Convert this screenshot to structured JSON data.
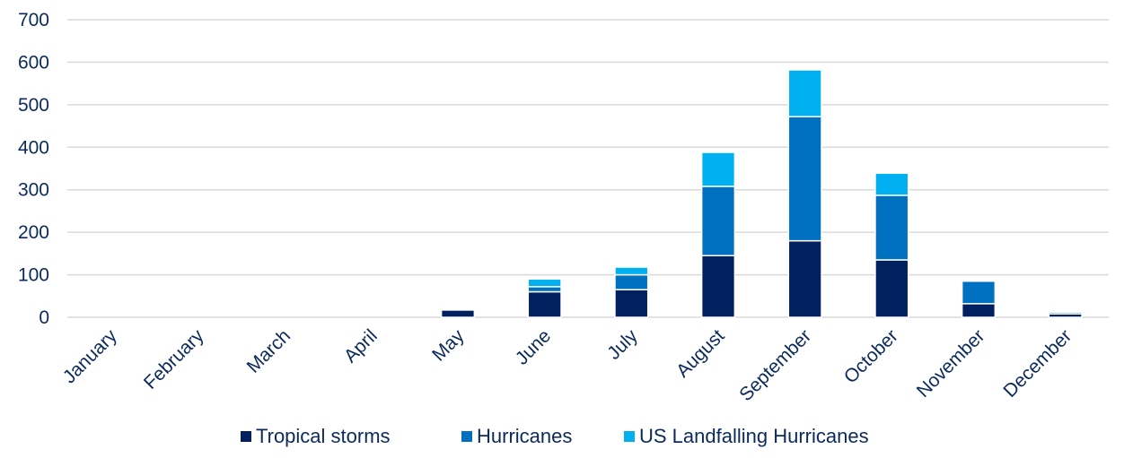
{
  "chart_data": {
    "type": "bar",
    "stacked": true,
    "title": "",
    "xlabel": "",
    "ylabel": "",
    "ylim": [
      0,
      700
    ],
    "yticks": [
      0,
      100,
      200,
      300,
      400,
      500,
      600,
      700
    ],
    "grid": true,
    "legend_position": "bottom",
    "categories": [
      "January",
      "February",
      "March",
      "April",
      "May",
      "June",
      "July",
      "August",
      "September",
      "October",
      "November",
      "December"
    ],
    "series": [
      {
        "name": "Tropical storms",
        "color": "#002060",
        "values": [
          0,
          0,
          0,
          0,
          17,
          60,
          65,
          145,
          180,
          135,
          32,
          8
        ]
      },
      {
        "name": "Hurricanes",
        "color": "#0070c0",
        "values": [
          0,
          0,
          0,
          0,
          0,
          12,
          35,
          163,
          292,
          152,
          53,
          4
        ]
      },
      {
        "name": "US Landfalling Hurricanes",
        "color": "#00b0f0",
        "values": [
          0,
          0,
          0,
          0,
          0,
          18,
          18,
          80,
          110,
          52,
          3,
          3
        ]
      }
    ]
  }
}
